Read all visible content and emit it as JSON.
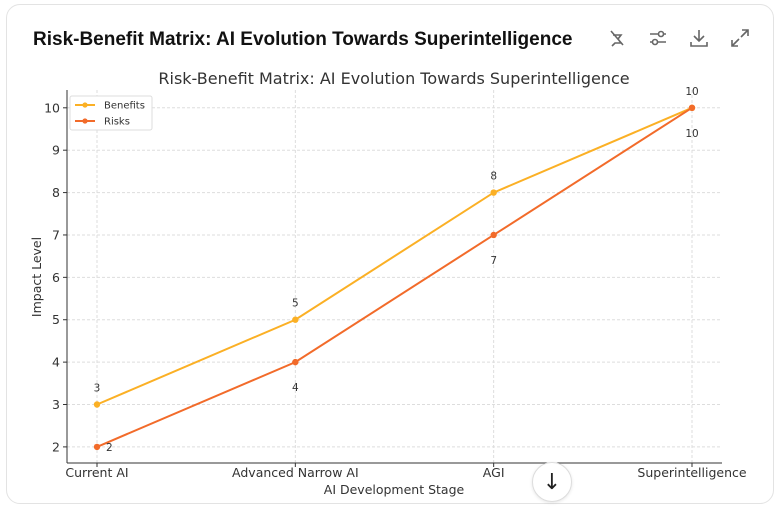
{
  "header": {
    "title": "Risk-Benefit Matrix: AI Evolution Towards Superintelligence"
  },
  "toolbar": {
    "icons": [
      "hide-chart-icon",
      "settings-sliders-icon",
      "download-icon",
      "expand-icon"
    ]
  },
  "scroll_button": {
    "icon": "arrow-down-icon",
    "glyph": "↓"
  },
  "chart_data": {
    "type": "line",
    "title": "Risk-Benefit Matrix: AI Evolution Towards Superintelligence",
    "xlabel": "AI Development Stage",
    "ylabel": "Impact Level",
    "categories": [
      "Current AI",
      "Advanced Narrow AI",
      "AGI",
      "Superintelligence"
    ],
    "ylim": [
      1.62,
      10.42
    ],
    "yticks": [
      2,
      3,
      4,
      5,
      6,
      7,
      8,
      9,
      10
    ],
    "grid": true,
    "legend": "top-left",
    "series": [
      {
        "name": "Benefits",
        "values": [
          3,
          5,
          8,
          10
        ],
        "color": "#fbb025",
        "label_pos": "above"
      },
      {
        "name": "Risks",
        "values": [
          2,
          4,
          7,
          10
        ],
        "color": "#f26b2a",
        "label_pos": "below"
      }
    ]
  }
}
